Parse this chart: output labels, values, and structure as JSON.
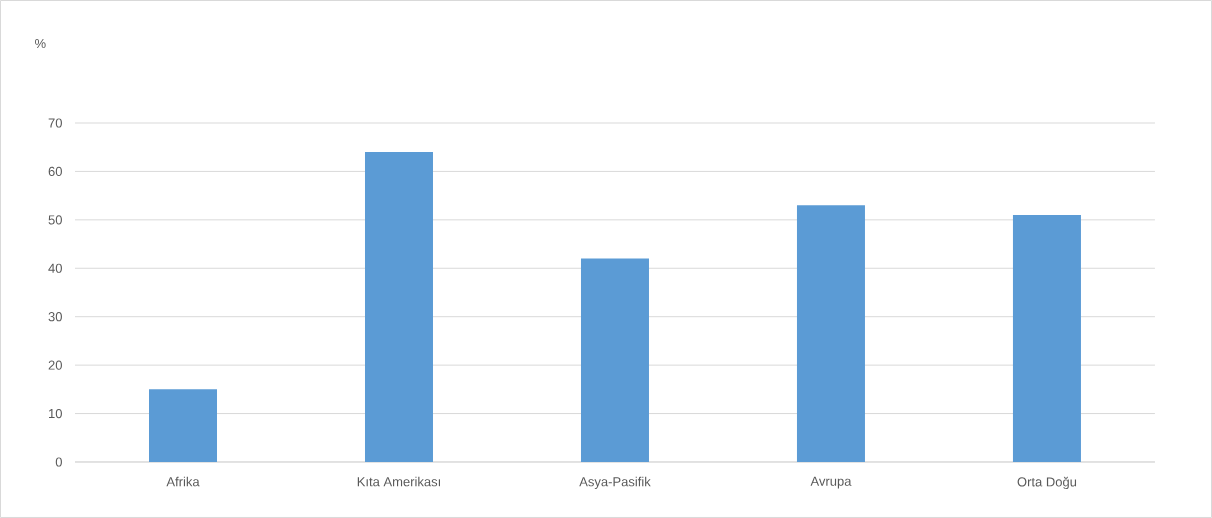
{
  "chart_data": {
    "type": "bar",
    "annotations": [
      "%"
    ],
    "categories": [
      "Afrika",
      "Kıta Amerikası",
      "Asya-Pasifik",
      "Avrupa",
      "Orta Doğu"
    ],
    "values": [
      15,
      64,
      42,
      53,
      51
    ],
    "color": "#5b9bd5",
    "ylim": [
      0,
      70
    ],
    "yticks": [
      0,
      10,
      20,
      30,
      40,
      50,
      60,
      70
    ],
    "grid": "y"
  }
}
